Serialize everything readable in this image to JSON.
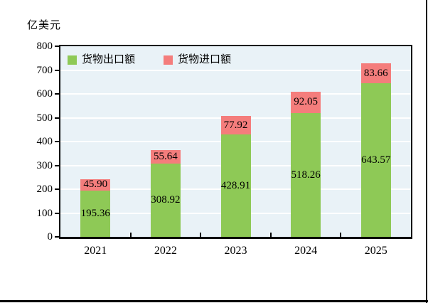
{
  "unit_label": "亿美元",
  "chart_data": {
    "type": "bar",
    "stacked": true,
    "title": "",
    "ylabel": "亿美元",
    "xlabel": "",
    "categories": [
      "2021",
      "2022",
      "2023",
      "2024",
      "2025"
    ],
    "series": [
      {
        "name": "货物出口额",
        "color": "#8ec956",
        "values": [
          195.36,
          308.92,
          428.91,
          518.26,
          643.57
        ]
      },
      {
        "name": "货物进口额",
        "color": "#f47d7c",
        "values": [
          45.9,
          55.64,
          77.92,
          92.05,
          83.66
        ]
      }
    ],
    "value_label_decimals": 2,
    "ylim": [
      0,
      800
    ],
    "ytick_step": 100,
    "yticks": [
      0,
      100,
      200,
      300,
      400,
      500,
      600,
      700,
      800
    ],
    "grid": true,
    "legend_position": "top-left-inside",
    "colors": {
      "plot_background": "#e9f2f7",
      "gridline": "#ffffff",
      "axis": "#000000",
      "text": "#000000"
    }
  }
}
